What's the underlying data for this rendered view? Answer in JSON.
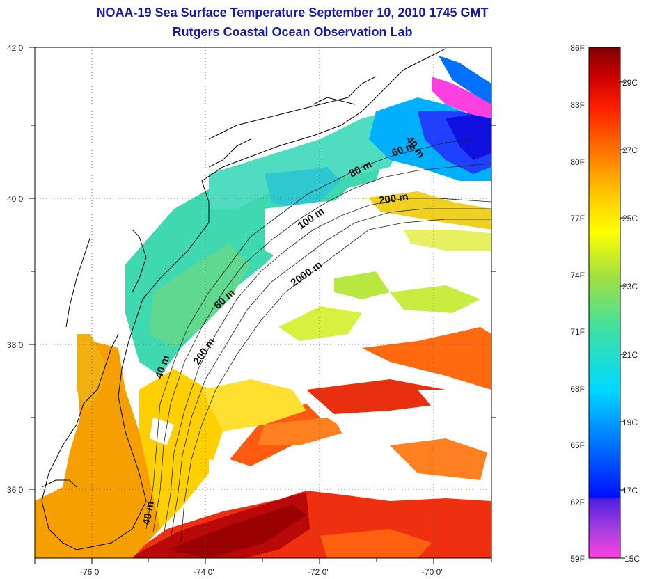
{
  "header": {
    "title_line1": "NOAA-19 Sea Surface Temperature September 10, 2010 1745 GMT",
    "title_line2": "Rutgers Coastal Ocean Observation Lab"
  },
  "map": {
    "lon_labels": [
      "-76 0'",
      "-74 0'",
      "-72 0'",
      "-70 0'"
    ],
    "lat_labels": [
      "42 0'",
      "40 0'",
      "38 0'",
      "36 0'"
    ],
    "isobaths": [
      "40 m",
      "60 m",
      "80 m",
      "200 m",
      "100 m",
      "2000 m",
      "60 m",
      "200 m",
      "40 m",
      "40 m"
    ]
  },
  "colorbar": {
    "fahrenheit": [
      "86F",
      "83F",
      "80F",
      "77F",
      "74F",
      "71F",
      "68F",
      "65F",
      "62F",
      "59F"
    ],
    "celsius": [
      "29C",
      "27C",
      "25C",
      "23C",
      "21C",
      "19C",
      "17C",
      "15C"
    ],
    "colors": [
      "#ff40e0",
      "#a040e0",
      "#0010ff",
      "#0088ff",
      "#00e8ff",
      "#40e0a0",
      "#a0e040",
      "#ffff00",
      "#ffc000",
      "#ff7000",
      "#ff2000",
      "#d00000",
      "#800000"
    ]
  }
}
